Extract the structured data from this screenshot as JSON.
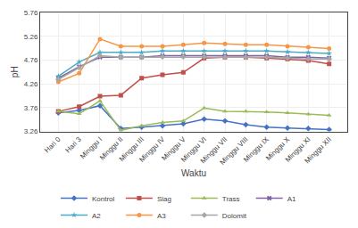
{
  "chart_data": {
    "type": "line",
    "xlabel": "Waktu",
    "ylabel": "pH",
    "categories": [
      "Hari 0",
      "Hari 3",
      "Minggu I",
      "Minggu II",
      "Minggu III",
      "Minggu IV",
      "Minggu V",
      "Minggu VI",
      "Minggu VII",
      "Minggu VIII",
      "Minggu IX",
      "Minggu X",
      "Minggu XI",
      "Minggu XII"
    ],
    "series": [
      {
        "name": "Kontrol",
        "color": "#4472C4",
        "marker": "diamond",
        "values": [
          3.65,
          3.7,
          3.8,
          3.32,
          3.35,
          3.38,
          3.42,
          3.52,
          3.48,
          3.4,
          3.35,
          3.33,
          3.32,
          3.3
        ]
      },
      {
        "name": "Slag",
        "color": "#C0504D",
        "marker": "square",
        "values": [
          3.68,
          3.78,
          4.0,
          4.02,
          4.38,
          4.45,
          4.5,
          4.8,
          4.82,
          4.82,
          4.8,
          4.78,
          4.75,
          4.68
        ]
      },
      {
        "name": "Trass",
        "color": "#9BBB59",
        "marker": "triangle-up",
        "values": [
          3.68,
          3.63,
          3.9,
          3.28,
          3.38,
          3.45,
          3.48,
          3.75,
          3.68,
          3.68,
          3.67,
          3.65,
          3.62,
          3.6
        ]
      },
      {
        "name": "A1",
        "color": "#8064A2",
        "marker": "x",
        "values": [
          4.38,
          4.62,
          4.82,
          4.82,
          4.82,
          4.85,
          4.85,
          4.85,
          4.85,
          4.85,
          4.85,
          4.82,
          4.82,
          4.8
        ]
      },
      {
        "name": "A2",
        "color": "#4BACC6",
        "marker": "star",
        "values": [
          4.42,
          4.72,
          4.92,
          4.92,
          4.92,
          4.95,
          4.95,
          4.95,
          4.95,
          4.95,
          4.95,
          4.93,
          4.92,
          4.9
        ]
      },
      {
        "name": "A3",
        "color": "#F79646",
        "marker": "circle",
        "values": [
          4.3,
          4.48,
          5.2,
          5.05,
          5.05,
          5.05,
          5.08,
          5.12,
          5.1,
          5.08,
          5.08,
          5.05,
          5.03,
          5.0
        ]
      },
      {
        "name": "Dolomit",
        "color": "#A6A6A6",
        "marker": "diamond",
        "values": [
          4.35,
          4.6,
          4.85,
          4.82,
          4.82,
          4.83,
          4.83,
          4.83,
          4.82,
          4.82,
          4.82,
          4.8,
          4.78,
          4.78
        ]
      }
    ],
    "ylim": [
      3.26,
      5.76
    ],
    "yticks": [
      3.26,
      3.76,
      4.26,
      4.76,
      5.26,
      5.76
    ],
    "grid": true,
    "legend": "bottom"
  }
}
